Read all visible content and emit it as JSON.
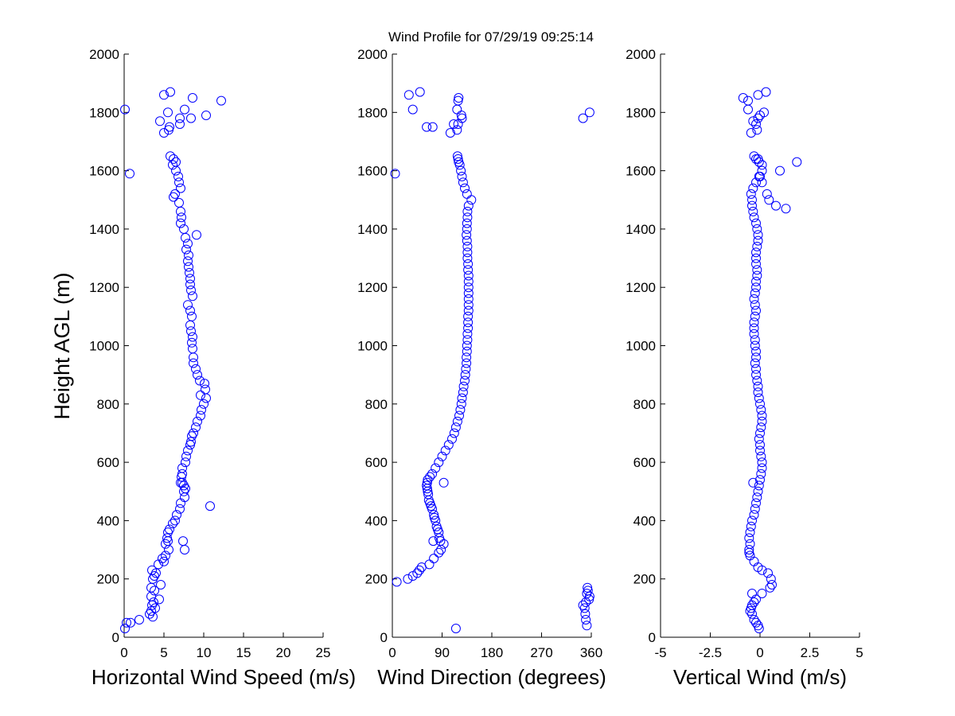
{
  "figure": {
    "title": "Wind Profile for  07/29/19 09:25:14",
    "ylabel": "Height AGL (m)",
    "colors": {
      "marker": "#0000ff",
      "axes": "#000000",
      "background": "#ffffff"
    }
  },
  "chart_data": [
    {
      "type": "scatter",
      "xlabel": "Horizontal Wind Speed (m/s)",
      "ylabel": "Height AGL (m)",
      "xlim": [
        0,
        25
      ],
      "ylim": [
        0,
        2000
      ],
      "xticks": [
        0,
        5,
        10,
        15,
        20,
        25
      ],
      "xtick_labels": [
        "0",
        "5",
        "10",
        "15",
        "20",
        "25"
      ],
      "yticks": [
        0,
        200,
        400,
        600,
        800,
        1000,
        1200,
        1400,
        1600,
        1800,
        2000
      ],
      "ytick_labels": [
        "0",
        "200",
        "400",
        "600",
        "800",
        "1000",
        "1200",
        "1400",
        "1600",
        "1800",
        "2000"
      ],
      "grid": false,
      "marker": "open-circle",
      "x": [
        0.1,
        0.3,
        0.8,
        1.9,
        3.6,
        3.2,
        3.4,
        3.9,
        3.5,
        3.7,
        4.4,
        3.4,
        3.8,
        3.4,
        4.6,
        3.6,
        3.8,
        4.0,
        3.5,
        4.3,
        5.0,
        4.8,
        5.2,
        7.6,
        5.6,
        5.2,
        5.5,
        5.4,
        5.5,
        5.7,
        6.1,
        6.4,
        6.6,
        7.0,
        10.8,
        7.1,
        7.6,
        7.5,
        7.7,
        7.5,
        7.3,
        7.2,
        7.3,
        7.3,
        7.7,
        7.8,
        8.0,
        8.3,
        8.4,
        8.5,
        8.7,
        9.0,
        9.2,
        9.6,
        9.7,
        10.0,
        10.3,
        9.6,
        10.2,
        10.1,
        9.5,
        9.2,
        9.0,
        8.7,
        8.7,
        8.6,
        8.5,
        8.6,
        8.4,
        8.3,
        8.5,
        8.3,
        8.0,
        8.6,
        8.4,
        8.3,
        8.3,
        8.2,
        8.1,
        8.0,
        8.1,
        7.8,
        8.0,
        7.7,
        9.1,
        7.5,
        7.1,
        7.2,
        7.1,
        6.9,
        6.2,
        6.4,
        7.1,
        6.9,
        6.8,
        6.5,
        6.1,
        6.5,
        6.2,
        5.8,
        7.4,
        7.1,
        0.7,
        5.7,
        5.0,
        5.6,
        7.0,
        7.0,
        5.5,
        7.6,
        8.6,
        8.4,
        4.5,
        10.3,
        0.1,
        12.2,
        5.0,
        5.8
      ],
      "y": [
        30,
        50,
        50,
        60,
        70,
        80,
        90,
        100,
        110,
        120,
        130,
        140,
        160,
        170,
        180,
        200,
        210,
        220,
        230,
        250,
        260,
        270,
        280,
        300,
        300,
        320,
        330,
        340,
        360,
        370,
        390,
        400,
        420,
        440,
        450,
        460,
        480,
        500,
        510,
        520,
        530,
        550,
        560,
        580,
        600,
        620,
        640,
        660,
        670,
        690,
        700,
        720,
        740,
        760,
        780,
        800,
        820,
        830,
        850,
        870,
        880,
        900,
        920,
        940,
        960,
        990,
        1010,
        1030,
        1050,
        1070,
        1100,
        1120,
        1140,
        1170,
        1190,
        1210,
        1230,
        1250,
        1270,
        1290,
        1310,
        1330,
        1350,
        1370,
        1380,
        1400,
        1420,
        1440,
        1460,
        1490,
        1510,
        1520,
        1540,
        1560,
        1580,
        1600,
        1620,
        1630,
        1640,
        1650,
        330,
        530,
        1590,
        1750,
        1730,
        1740,
        1760,
        1780,
        1800,
        1810,
        1850,
        1780,
        1770,
        1790,
        1810,
        1840,
        1860,
        1870
      ]
    },
    {
      "type": "scatter",
      "xlabel": "Wind Direction (degrees)",
      "ylabel": "",
      "xlim": [
        0,
        360
      ],
      "ylim": [
        0,
        2000
      ],
      "xticks": [
        0,
        90,
        180,
        270,
        360
      ],
      "xtick_labels": [
        "0",
        "90",
        "180",
        "270",
        "360"
      ],
      "yticks": [
        0,
        200,
        400,
        600,
        800,
        1000,
        1200,
        1400,
        1600,
        1800,
        2000
      ],
      "ytick_labels": [
        "0",
        "200",
        "400",
        "600",
        "800",
        "1000",
        "1200",
        "1400",
        "1600",
        "1800",
        "2000"
      ],
      "grid": false,
      "marker": "open-circle",
      "x": [
        115,
        352,
        350,
        349,
        348,
        345,
        350,
        356,
        357,
        352,
        354,
        353,
        8,
        28,
        37,
        45,
        49,
        53,
        67,
        75,
        84,
        88,
        93,
        87,
        85,
        84,
        82,
        80,
        78,
        76,
        75,
        72,
        70,
        68,
        66,
        65,
        64,
        63,
        62,
        63,
        64,
        68,
        72,
        78,
        84,
        90,
        96,
        102,
        108,
        112,
        115,
        118,
        121,
        123,
        125,
        126,
        128,
        129,
        131,
        132,
        133,
        134,
        134,
        135,
        135,
        136,
        136,
        137,
        137,
        137,
        138,
        138,
        138,
        138,
        138,
        138,
        138,
        137,
        137,
        136,
        136,
        136,
        135,
        134,
        135,
        135,
        136,
        136,
        138,
        143,
        135,
        131,
        128,
        126,
        124,
        122,
        120,
        119,
        118,
        117,
        74,
        93,
        5,
        62,
        125,
        105,
        111,
        119,
        126,
        73,
        345,
        357,
        37,
        50,
        30,
        117,
        119,
        120
      ],
      "y": [
        30,
        40,
        60,
        80,
        100,
        110,
        120,
        130,
        140,
        150,
        160,
        170,
        190,
        200,
        210,
        220,
        230,
        240,
        250,
        270,
        290,
        300,
        320,
        330,
        340,
        360,
        370,
        380,
        400,
        410,
        420,
        440,
        450,
        460,
        470,
        490,
        500,
        510,
        520,
        530,
        540,
        550,
        560,
        580,
        600,
        620,
        640,
        660,
        680,
        700,
        720,
        740,
        760,
        780,
        800,
        820,
        840,
        860,
        880,
        900,
        920,
        940,
        960,
        980,
        1000,
        1020,
        1040,
        1060,
        1080,
        1100,
        1120,
        1140,
        1160,
        1180,
        1200,
        1220,
        1240,
        1260,
        1280,
        1300,
        1320,
        1340,
        1360,
        1380,
        1400,
        1420,
        1440,
        1460,
        1480,
        1500,
        1520,
        1540,
        1560,
        1580,
        1600,
        1620,
        1630,
        1640,
        1650,
        1740,
        330,
        530,
        1590,
        1750,
        1790,
        1730,
        1760,
        1760,
        1780,
        1750,
        1780,
        1800,
        1810,
        1870,
        1860,
        1810,
        1840,
        1850
      ]
    },
    {
      "type": "scatter",
      "xlabel": "Vertical Wind (m/s)",
      "ylabel": "",
      "xlim": [
        -5,
        5
      ],
      "ylim": [
        0,
        2000
      ],
      "xticks": [
        -5,
        -2.5,
        0,
        2.5,
        5
      ],
      "xtick_labels": [
        "-5",
        "-2.5",
        "0",
        "2.5",
        "5"
      ],
      "yticks": [
        0,
        200,
        400,
        600,
        800,
        1000,
        1200,
        1400,
        1600,
        1800,
        2000
      ],
      "ytick_labels": [
        "0",
        "200",
        "400",
        "600",
        "800",
        "1000",
        "1200",
        "1400",
        "1600",
        "1800",
        "2000"
      ],
      "grid": false,
      "marker": "open-circle",
      "x": [
        -0.05,
        -0.1,
        -0.2,
        -0.3,
        -0.4,
        -0.5,
        -0.45,
        -0.4,
        -0.3,
        -0.2,
        0.1,
        0.5,
        0.6,
        0.55,
        0.4,
        0.1,
        -0.1,
        -0.3,
        -0.5,
        -0.55,
        -0.55,
        -0.5,
        -0.55,
        -0.5,
        -0.45,
        -0.4,
        -0.3,
        -0.25,
        -0.2,
        -0.15,
        -0.1,
        -0.05,
        0.0,
        0.05,
        0.1,
        0.1,
        0.05,
        0.0,
        0.0,
        -0.05,
        0.0,
        0.05,
        0.1,
        0.1,
        0.05,
        0.0,
        -0.05,
        -0.1,
        -0.1,
        -0.15,
        -0.2,
        -0.2,
        -0.25,
        -0.2,
        -0.2,
        -0.25,
        -0.25,
        -0.3,
        -0.3,
        -0.3,
        -0.25,
        -0.2,
        -0.25,
        -0.3,
        -0.25,
        -0.2,
        -0.2,
        -0.15,
        -0.15,
        -0.2,
        -0.2,
        -0.2,
        -0.15,
        -0.1,
        -0.1,
        -0.15,
        -0.2,
        -0.3,
        -0.35,
        -0.4,
        -0.4,
        -0.45,
        -0.35,
        -0.2,
        -0.05,
        0.1,
        0.1,
        -0.05,
        -0.2,
        -0.3,
        -0.35,
        -0.4,
        -0.45,
        -0.35,
        -0.2,
        -0.1,
        0.2,
        0.0,
        -0.6,
        -0.85,
        -0.1,
        0.3,
        -0.6,
        -0.15,
        0.1,
        0.45,
        1.0,
        1.85,
        -0.1,
        0.0,
        0.35,
        0.8,
        1.3
      ],
      "y": [
        30,
        40,
        50,
        60,
        80,
        90,
        100,
        110,
        120,
        130,
        150,
        170,
        180,
        200,
        220,
        230,
        240,
        260,
        280,
        290,
        300,
        320,
        340,
        360,
        380,
        400,
        420,
        440,
        460,
        480,
        500,
        520,
        540,
        560,
        580,
        600,
        620,
        640,
        660,
        680,
        700,
        720,
        740,
        760,
        780,
        800,
        820,
        840,
        860,
        880,
        900,
        920,
        940,
        960,
        980,
        1000,
        1020,
        1040,
        1060,
        1080,
        1100,
        1120,
        1140,
        1160,
        1180,
        1200,
        1220,
        1240,
        1260,
        1280,
        1300,
        1320,
        1340,
        1360,
        1380,
        1400,
        1420,
        1440,
        1460,
        1480,
        1500,
        1520,
        1540,
        1560,
        1580,
        1600,
        1620,
        1630,
        1640,
        1650,
        530,
        150,
        1730,
        1770,
        1760,
        1780,
        1800,
        1790,
        1840,
        1850,
        1860,
        1870,
        1810,
        1740,
        1560,
        1500,
        1600,
        1630,
        1640,
        1580,
        1520,
        1480,
        1470
      ]
    }
  ]
}
